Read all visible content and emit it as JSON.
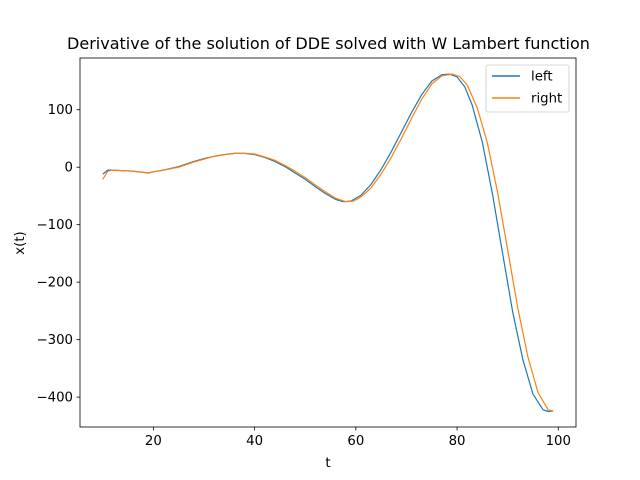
{
  "chart_data": {
    "type": "line",
    "title": "Derivative of the solution of DDE solved with W Lambert function",
    "xlabel": "t",
    "ylabel": "x(t)",
    "xlim": [
      5.5,
      103.5
    ],
    "ylim": [
      -452,
      190
    ],
    "xticks": [
      20,
      40,
      60,
      80,
      100
    ],
    "xtick_labels": [
      "20",
      "40",
      "60",
      "80",
      "100"
    ],
    "yticks": [
      100,
      0,
      -100,
      -200,
      -300,
      -400
    ],
    "ytick_labels": [
      "100",
      "0",
      "−100",
      "−200",
      "−300",
      "−400"
    ],
    "grid": false,
    "legend_position": "top-right",
    "series": [
      {
        "name": "left",
        "color": "#1f77b4",
        "x": [
          10,
          11,
          12,
          14,
          16,
          18,
          19,
          20,
          22,
          25,
          28,
          30,
          32,
          34,
          36,
          38,
          40,
          42,
          44,
          46,
          48,
          50,
          52,
          54,
          56,
          57.5,
          59,
          61,
          63,
          65,
          67,
          69,
          71,
          73,
          75,
          77,
          78.5,
          80,
          81.5,
          83,
          85,
          87,
          89,
          91,
          93,
          95,
          97,
          98,
          99
        ],
        "y": [
          -12,
          -5,
          -5,
          -6,
          -7,
          -9,
          -10,
          -8,
          -5,
          1,
          10,
          15,
          19,
          22,
          24,
          24,
          22,
          17,
          10,
          1,
          -10,
          -21,
          -34,
          -46,
          -56,
          -60,
          -59,
          -49,
          -30,
          -4,
          27,
          61,
          95,
          126,
          150,
          161,
          162,
          157,
          140,
          108,
          43,
          -47,
          -150,
          -252,
          -335,
          -395,
          -422,
          -425,
          -424
        ]
      },
      {
        "name": "right",
        "color": "#ff7f0e",
        "x": [
          10,
          11,
          12,
          14,
          16,
          18,
          19,
          20,
          22,
          25,
          28,
          30,
          32,
          34,
          36,
          38,
          40,
          42,
          44,
          46,
          48,
          50,
          52,
          54,
          56,
          58,
          59.5,
          61,
          63,
          65,
          67,
          69,
          71,
          73,
          75,
          77,
          79,
          80.5,
          82,
          84,
          86,
          88,
          90,
          92,
          94,
          96,
          98,
          99
        ],
        "y": [
          -21,
          -7,
          -5,
          -6,
          -7,
          -9,
          -10,
          -8,
          -5,
          0,
          9,
          14,
          19,
          22,
          24,
          24,
          23,
          18,
          12,
          3,
          -7,
          -18,
          -31,
          -43,
          -54,
          -60,
          -59,
          -52,
          -36,
          -12,
          17,
          50,
          85,
          118,
          145,
          159,
          162,
          158,
          143,
          103,
          42,
          -44,
          -144,
          -245,
          -330,
          -392,
          -422,
          -424
        ]
      }
    ]
  }
}
